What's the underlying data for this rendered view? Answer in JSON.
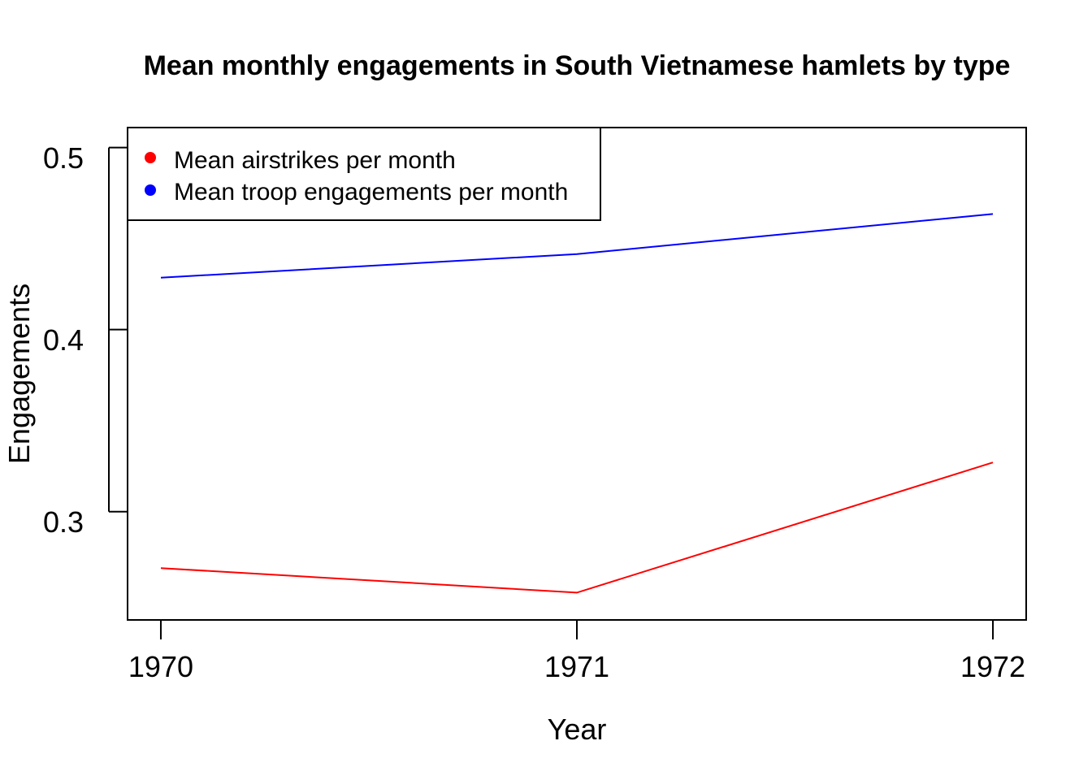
{
  "chart_data": {
    "type": "line",
    "title": "Mean monthly engagements in South Vietnamese hamlets by type",
    "xlabel": "Year",
    "ylabel": "Engagements",
    "x": [
      1970,
      1971,
      1972
    ],
    "x_tick_labels": [
      "1970",
      "1971",
      "1972"
    ],
    "y_ticks": [
      0.3,
      0.4,
      0.5
    ],
    "y_tick_labels": [
      "0.3",
      "0.4",
      "0.5"
    ],
    "xlim": [
      1969.92,
      1972.08
    ],
    "ylim": [
      0.2405,
      0.511
    ],
    "grid": false,
    "legend_position": "top-left",
    "series": [
      {
        "name": "Mean airstrikes per month",
        "color": "#ff0000",
        "values": [
          0.269,
          0.2555,
          0.327
        ]
      },
      {
        "name": "Mean troop engagements per month",
        "color": "#0000ff",
        "values": [
          0.4285,
          0.4415,
          0.4635
        ]
      }
    ]
  }
}
